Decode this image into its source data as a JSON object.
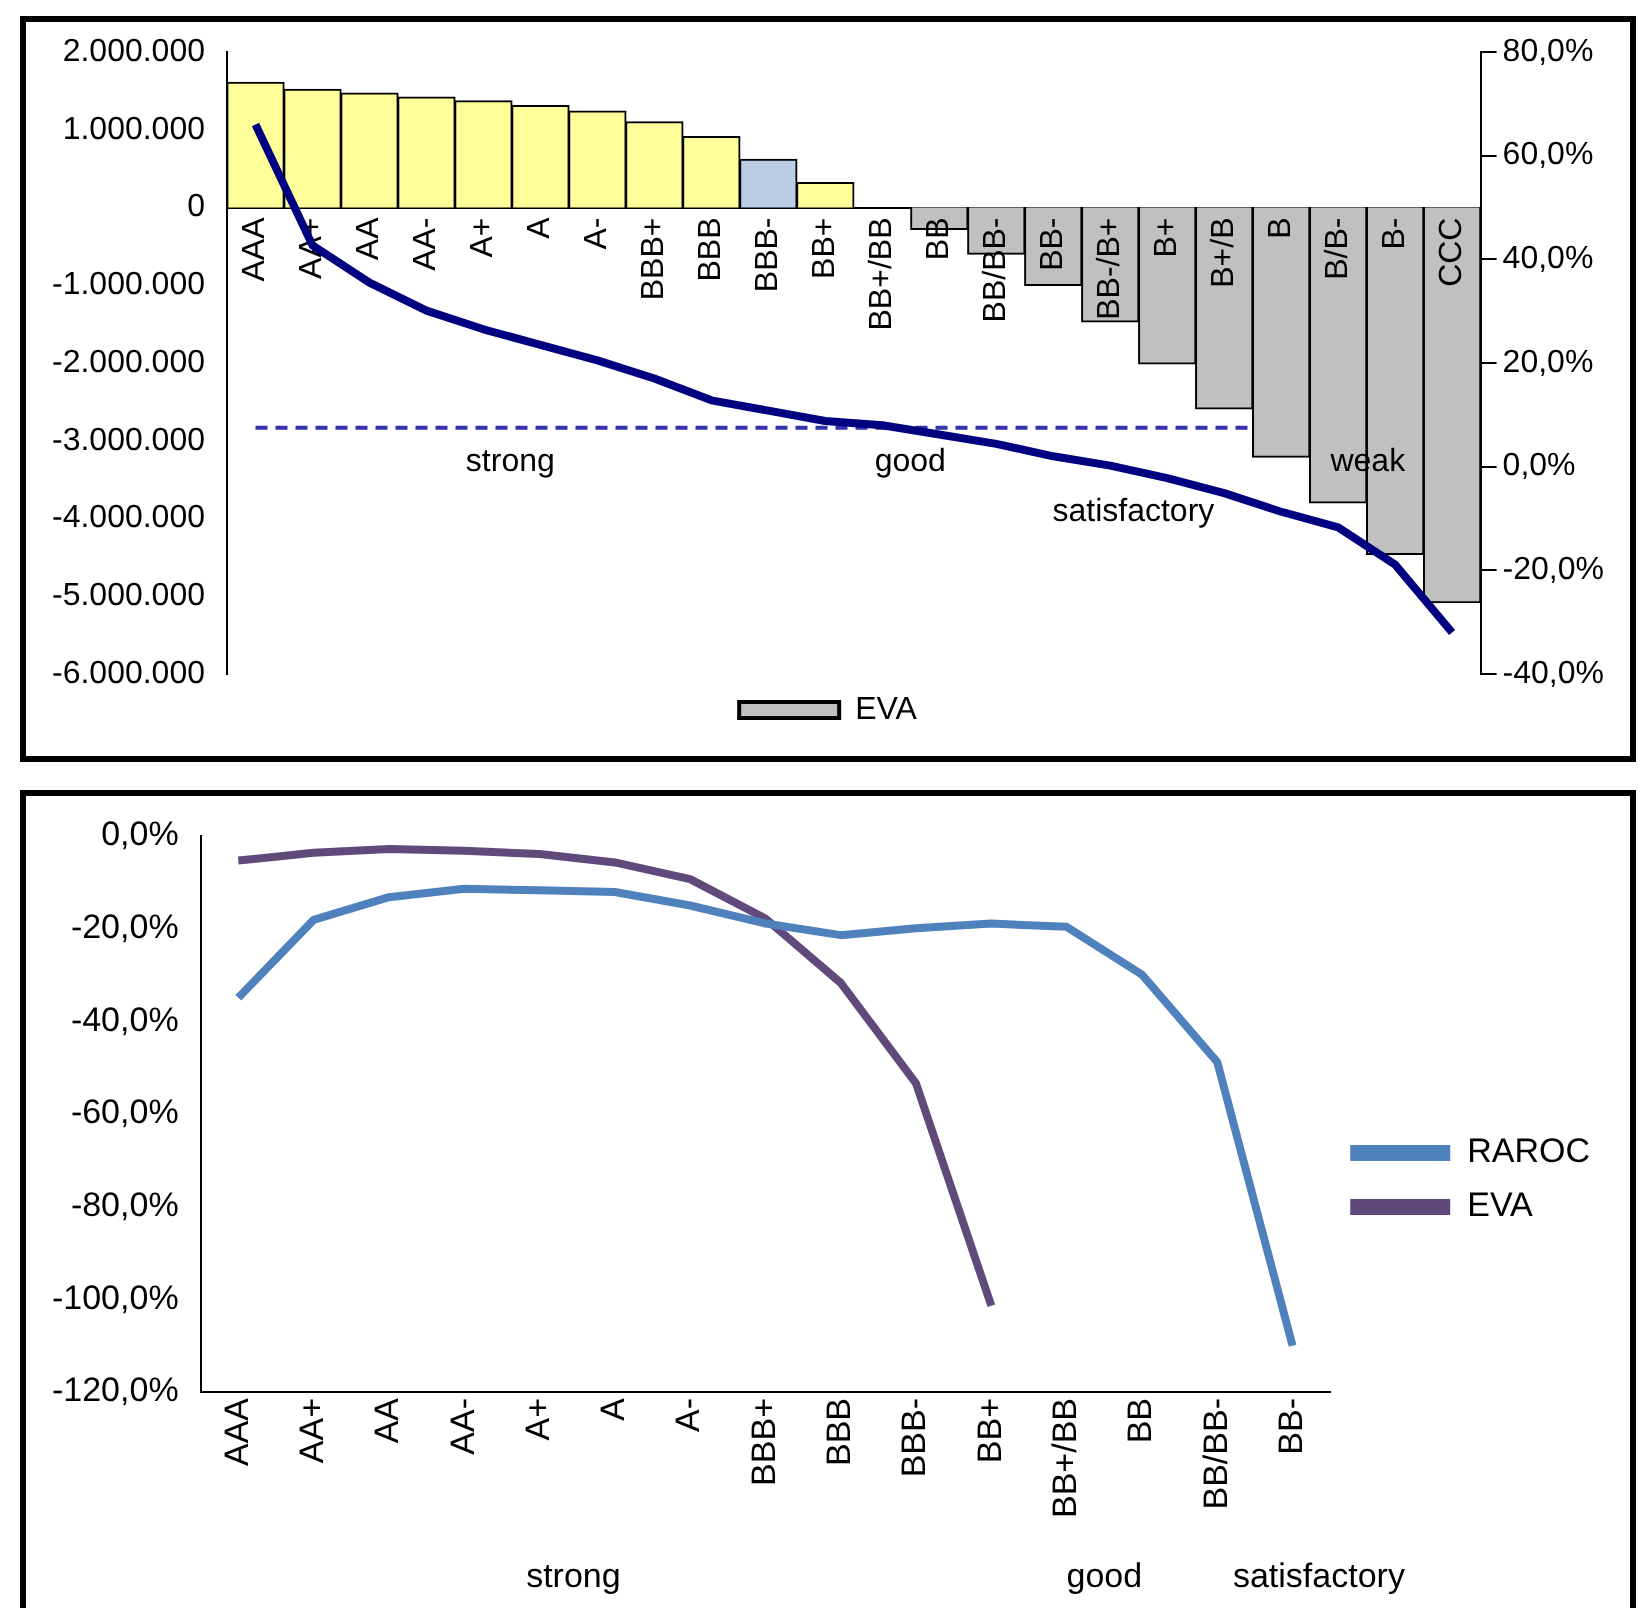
{
  "chart_data": [
    {
      "type": "bar",
      "categories": [
        "AAA",
        "AA+",
        "AA",
        "AA-",
        "A+",
        "A",
        "A-",
        "BBB+",
        "BBB",
        "BBB-",
        "BB+",
        "BB+/BB",
        "BB",
        "BB/BB-",
        "BB-",
        "BB-/B+",
        "B+",
        "B+/B",
        "B",
        "B/B-",
        "B-",
        "CCC"
      ],
      "series": [
        {
          "name": "EVA",
          "type": "bar",
          "color": "#c0c0c0",
          "colors": [
            "#ffff99",
            "#ffff99",
            "#ffff99",
            "#ffff99",
            "#ffff99",
            "#ffff99",
            "#ffff99",
            "#ffff99",
            "#ffff99",
            "#b9cde5",
            "#ffff99",
            "#c0c0c0",
            "#c0c0c0",
            "#c0c0c0",
            "#c0c0c0",
            "#c0c0c0",
            "#c0c0c0",
            "#c0c0c0",
            "#c0c0c0",
            "#c0c0c0",
            "#c0c0c0",
            "#c0c0c0"
          ],
          "values": [
            1610000,
            1520000,
            1470000,
            1420000,
            1370000,
            1310000,
            1240000,
            1100000,
            910000,
            620000,
            320000,
            0,
            -280000,
            -600000,
            -1000000,
            -1470000,
            -2010000,
            -2590000,
            -3210000,
            -3800000,
            -4460000,
            -5080000
          ]
        },
        {
          "type": "line",
          "axis": "y2",
          "color": "#000080",
          "values": [
            66,
            42.7,
            35.5,
            30.1,
            26.5,
            23.5,
            20.5,
            17,
            12.8,
            10.8,
            8.8,
            8,
            6.2,
            4.4,
            2,
            0.2,
            -2.2,
            -5.1,
            -8.7,
            -11.7,
            -18.9,
            -32
          ]
        }
      ],
      "ylim": [
        -6000000,
        2000000
      ],
      "yticks": [
        {
          "value": -6000000,
          "label": "-6.000.000"
        },
        {
          "value": -5000000,
          "label": "-5.000.000"
        },
        {
          "value": -4000000,
          "label": "-4.000.000"
        },
        {
          "value": -3000000,
          "label": "-3.000.000"
        },
        {
          "value": -2000000,
          "label": "-2.000.000"
        },
        {
          "value": -1000000,
          "label": "-1.000.000"
        },
        {
          "value": 0,
          "label": "0"
        },
        {
          "value": 1000000,
          "label": "1.000.000"
        },
        {
          "value": 2000000,
          "label": "2.000.000"
        }
      ],
      "y2lim": [
        -40,
        80
      ],
      "y2ticks": [
        {
          "value": -40,
          "label": "-40,0%"
        },
        {
          "value": -20,
          "label": "-20,0%"
        },
        {
          "value": 0,
          "label": "0,0%"
        },
        {
          "value": 20,
          "label": "20,0%"
        },
        {
          "value": 40,
          "label": "40,0%"
        },
        {
          "value": 60,
          "label": "60,0%"
        },
        {
          "value": 80,
          "label": "80,0%"
        }
      ],
      "ref_lines": [
        {
          "axis": "y2",
          "value": 7.5,
          "color": "#3333aa",
          "line_style": "dashed"
        }
      ],
      "annotations": [
        "strong",
        "good",
        "satisfactory",
        "weak"
      ],
      "marker": "none",
      "legend": "bottom"
    },
    {
      "type": "line",
      "categories": [
        "AAA",
        "AA+",
        "AA",
        "AA-",
        "A+",
        "A",
        "A-",
        "BBB+",
        "BBB",
        "BBB-",
        "BB+",
        "BB+/BB",
        "BB",
        "BB/BB-",
        "BB-"
      ],
      "series": [
        {
          "name": "RAROC",
          "color": "#4f81bd",
          "values": [
            -34.9,
            -18.1,
            -13.2,
            -11.4,
            -11.7,
            -12.1,
            -15,
            -18.9,
            -21.4,
            -19.9,
            -18.9,
            -19.6,
            -29.9,
            -48.8,
            -110
          ]
        },
        {
          "name": "EVA",
          "color": "#604a7b",
          "values": [
            -5.3,
            -3.6,
            -2.8,
            -3.2,
            -3.9,
            -5.7,
            -9.3,
            -17.8,
            -31.7,
            -53.4,
            -101.4,
            null,
            null,
            null,
            null
          ]
        }
      ],
      "ylim": [
        -120,
        0
      ],
      "yticks": [
        {
          "value": -120,
          "label": "-120,0%"
        },
        {
          "value": -100,
          "label": "-100,0%"
        },
        {
          "value": -80,
          "label": "-80,0%"
        },
        {
          "value": -60,
          "label": "-60,0%"
        },
        {
          "value": -40,
          "label": "-40,0%"
        },
        {
          "value": -20,
          "label": "-20,0%"
        },
        {
          "value": 0,
          "label": "0,0%"
        }
      ],
      "annotations": [
        "strong",
        "good",
        "satisfactory"
      ],
      "marker": "none",
      "legend": "right"
    }
  ]
}
